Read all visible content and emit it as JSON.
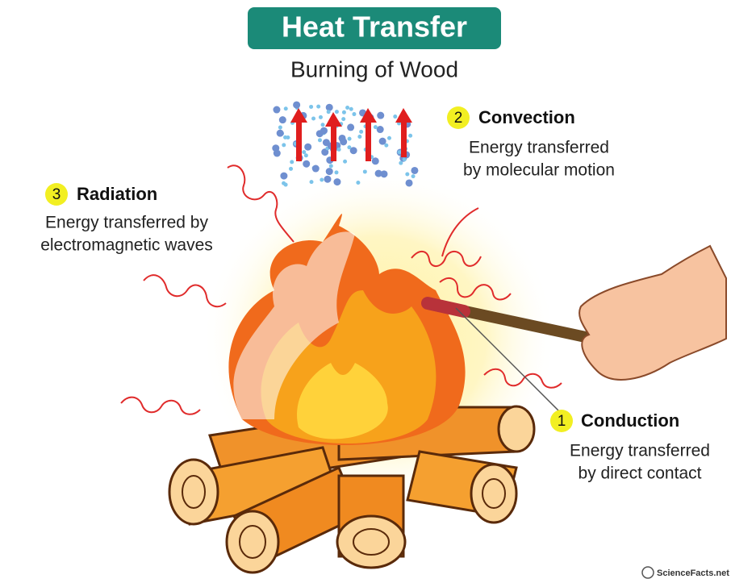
{
  "title": "Heat Transfer",
  "subtitle": "Burning of Wood",
  "labels": [
    {
      "number": "1",
      "name": "Conduction",
      "description": [
        "Energy transferred",
        "by direct contact"
      ]
    },
    {
      "number": "2",
      "name": "Convection",
      "description": [
        "Energy transferred",
        "by molecular motion"
      ]
    },
    {
      "number": "3",
      "name": "Radiation",
      "description": [
        "Energy transferred by",
        "electromagnetic waves"
      ]
    }
  ],
  "credit": "ScienceFacts.net"
}
